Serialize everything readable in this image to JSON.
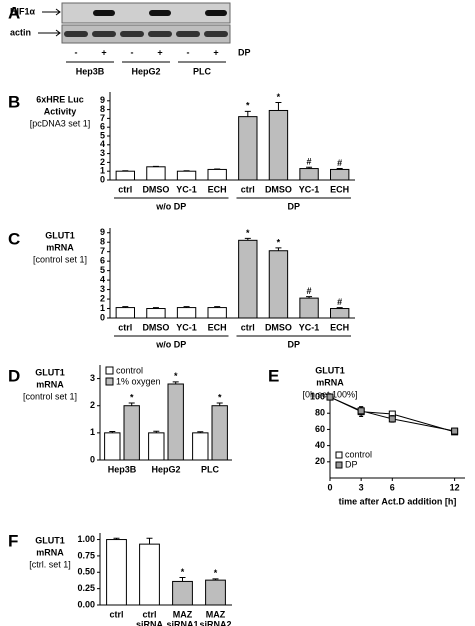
{
  "chart_data": [
    {
      "type": "blot",
      "letter": "A",
      "band_labels": [
        "HIF1α",
        "actin"
      ],
      "lanes": [
        "-",
        "+",
        "-",
        "+",
        "-",
        "+"
      ],
      "treatment": "DP",
      "cell_lines": [
        "Hep3B",
        "HepG2",
        "PLC"
      ]
    },
    {
      "type": "bar",
      "letter": "B",
      "ylabel": [
        "6xHRE Luc",
        "Activity",
        "[pcDNA3 set 1]"
      ],
      "categories": [
        "ctrl",
        "DMSO",
        "YC-1",
        "ECH",
        "ctrl",
        "DMSO",
        "YC-1",
        "ECH"
      ],
      "values": [
        1.0,
        1.5,
        1.0,
        1.2,
        7.2,
        7.9,
        1.3,
        1.2
      ],
      "errors": [
        0.05,
        0.05,
        0.05,
        0.05,
        0.6,
        0.9,
        0.15,
        0.1
      ],
      "colors": [
        "#ffffff",
        "#ffffff",
        "#ffffff",
        "#ffffff",
        "#bdbdbd",
        "#bdbdbd",
        "#bdbdbd",
        "#bdbdbd"
      ],
      "annotations": [
        null,
        null,
        null,
        null,
        "*",
        "*",
        "#",
        "#"
      ],
      "group_labels": [
        "w/o DP",
        "DP"
      ],
      "ylim": [
        0,
        10
      ],
      "yticks": [
        0,
        1,
        2,
        3,
        4,
        5,
        6,
        7,
        8,
        9
      ]
    },
    {
      "type": "bar",
      "letter": "C",
      "ylabel": [
        "GLUT1",
        "mRNA",
        "[control set 1]"
      ],
      "categories": [
        "ctrl",
        "DMSO",
        "YC-1",
        "ECH",
        "ctrl",
        "DMSO",
        "YC-1",
        "ECH"
      ],
      "values": [
        1.1,
        1.0,
        1.1,
        1.1,
        8.2,
        7.1,
        2.1,
        1.0
      ],
      "errors": [
        0.1,
        0.1,
        0.1,
        0.1,
        0.2,
        0.3,
        0.15,
        0.1
      ],
      "colors": [
        "#ffffff",
        "#ffffff",
        "#ffffff",
        "#ffffff",
        "#bdbdbd",
        "#bdbdbd",
        "#bdbdbd",
        "#bdbdbd"
      ],
      "annotations": [
        null,
        null,
        null,
        null,
        "*",
        "*",
        "#",
        "#"
      ],
      "group_labels": [
        "w/o DP",
        "DP"
      ],
      "ylim": [
        0,
        9.5
      ],
      "yticks": [
        0,
        1,
        2,
        3,
        4,
        5,
        6,
        7,
        8,
        9
      ]
    },
    {
      "type": "groupedbar",
      "letter": "D",
      "ylabel": [
        "GLUT1",
        "mRNA",
        "[control set 1]"
      ],
      "categories": [
        "Hep3B",
        "HepG2",
        "PLC"
      ],
      "series": [
        {
          "name": "control",
          "color": "#ffffff",
          "values": [
            1.0,
            1.0,
            1.0
          ],
          "errors": [
            0.05,
            0.06,
            0.04
          ]
        },
        {
          "name": "1% oxygen",
          "color": "#bdbdbd",
          "values": [
            2.0,
            2.8,
            2.0
          ],
          "errors": [
            0.1,
            0.08,
            0.1
          ],
          "annotations": [
            "*",
            "*",
            "*"
          ]
        }
      ],
      "ylim": [
        0,
        3.5
      ],
      "yticks": [
        0,
        1,
        2,
        3
      ]
    },
    {
      "type": "line",
      "letter": "E",
      "ylabel": [
        "GLUT1",
        "mRNA",
        "[0h set 100%]"
      ],
      "xlabel": "time after Act.D addition [h]",
      "x": [
        0,
        3,
        6,
        12
      ],
      "series": [
        {
          "name": "control",
          "color": "#ffffff",
          "values": [
            100,
            82,
            79,
            57
          ],
          "errors": [
            1,
            6,
            3,
            2
          ]
        },
        {
          "name": "DP",
          "color": "#999999",
          "values": [
            100,
            83,
            73,
            58
          ],
          "errors": [
            1,
            5,
            4,
            2
          ]
        }
      ],
      "xlim": [
        0,
        13
      ],
      "xticks": [
        0,
        3,
        6,
        12
      ],
      "ylim": [
        0,
        105
      ],
      "yticks": [
        20,
        40,
        60,
        80,
        100
      ]
    },
    {
      "type": "bar",
      "letter": "F",
      "ylabel": [
        "GLUT1",
        "mRNA",
        "[ctrl. set 1]"
      ],
      "categories": [
        [
          "ctrl"
        ],
        [
          "ctrl",
          "siRNA"
        ],
        [
          "MAZ",
          "siRNA1"
        ],
        [
          "MAZ",
          "siRNA2"
        ]
      ],
      "values": [
        1.0,
        0.93,
        0.36,
        0.38
      ],
      "errors": [
        0.02,
        0.09,
        0.06,
        0.02
      ],
      "colors": [
        "#ffffff",
        "#ffffff",
        "#bdbdbd",
        "#bdbdbd"
      ],
      "annotations": [
        null,
        null,
        "*",
        "*"
      ],
      "ylim": [
        0,
        1.1
      ],
      "yticks": [
        {
          "value": 0,
          "label": "0.00"
        },
        {
          "value": 0.25,
          "label": "0.25"
        },
        {
          "value": 0.5,
          "label": "0.50"
        },
        {
          "value": 0.75,
          "label": "0.75"
        },
        {
          "value": 1,
          "label": "1.00"
        }
      ]
    }
  ]
}
